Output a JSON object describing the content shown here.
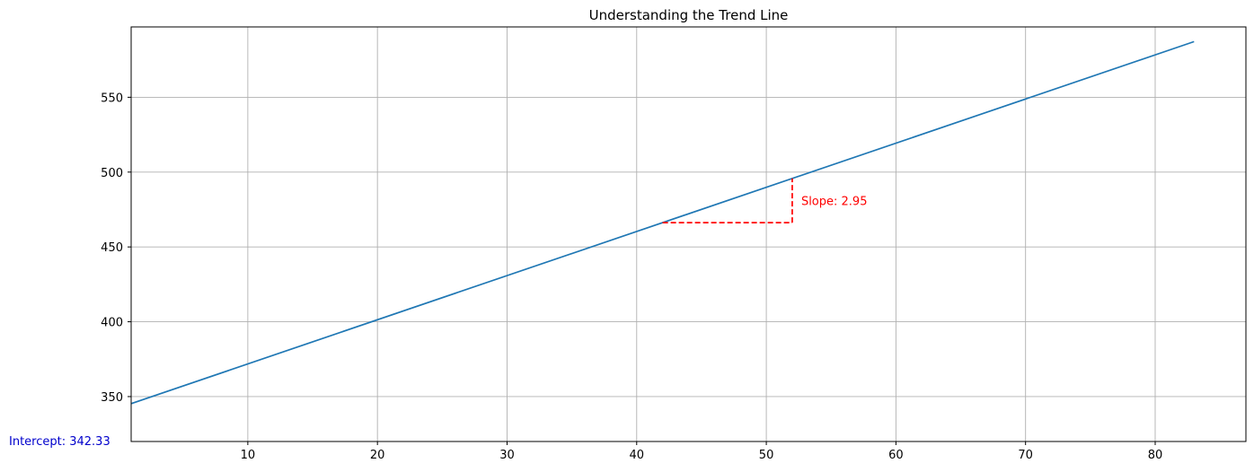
{
  "chart_data": {
    "type": "line",
    "title": "Understanding the Trend Line",
    "xlabel": "",
    "ylabel": "",
    "xlim": [
      1,
      87
    ],
    "ylim": [
      320,
      597
    ],
    "xticks": [
      10,
      20,
      30,
      40,
      50,
      60,
      70,
      80
    ],
    "yticks": [
      350,
      400,
      450,
      500,
      550
    ],
    "grid": true,
    "series": [
      {
        "x": [
          1,
          83
        ],
        "y": [
          345.28,
          587.18
        ],
        "color": "#1f77b4"
      }
    ],
    "slope_triangle": {
      "x0": 42,
      "x1": 52,
      "y0": 466.23,
      "y1": 495.73,
      "color": "#ff0000",
      "label": "Slope: 2.95"
    },
    "intercept_label": {
      "text": "Intercept: 342.33",
      "color": "#0000cc"
    }
  }
}
